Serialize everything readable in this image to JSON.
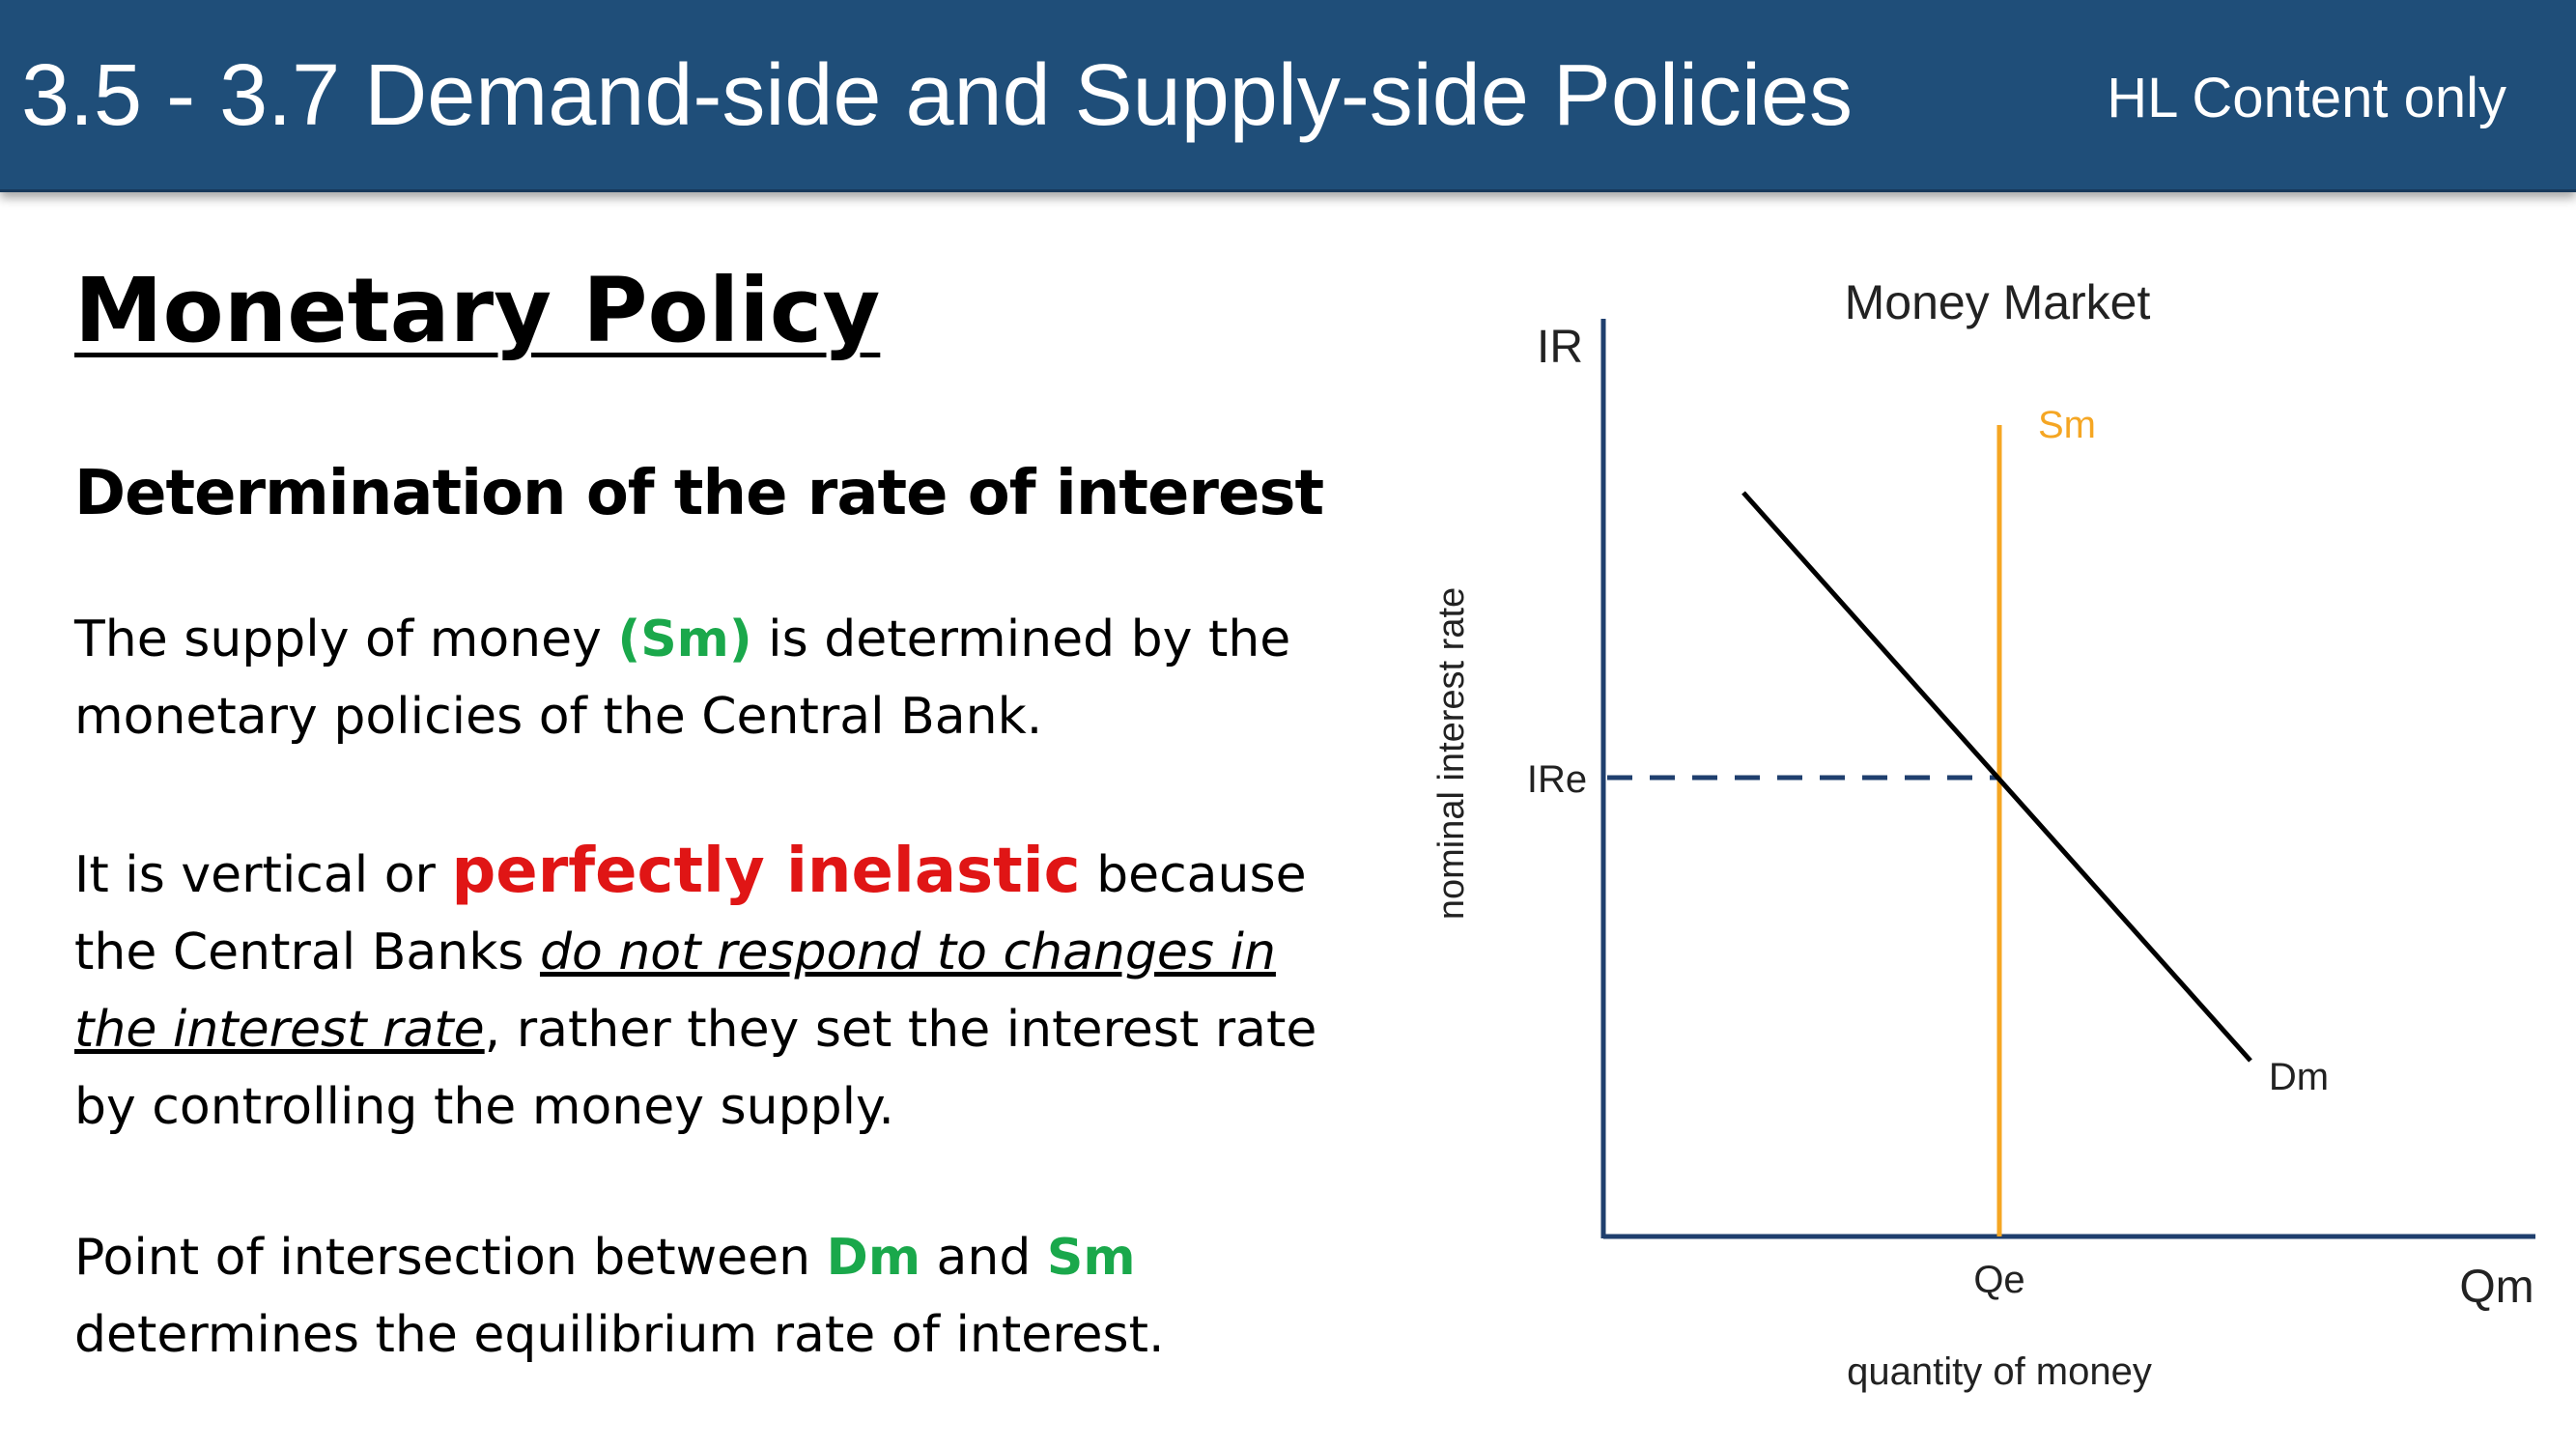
{
  "header": {
    "title": "3.5 - 3.7 Demand-side and Supply-side Policies",
    "tag": "HL Content only"
  },
  "main": {
    "heading": "Monetary Policy",
    "subheading": "Determination of the rate of interest",
    "p1": {
      "a": "The supply of money ",
      "b": "(Sm)",
      "c": " is determined by the monetary policies of the Central Bank."
    },
    "p2": {
      "a": "It is vertical or ",
      "b": "perfectly inelastic",
      "c": " because the Central Banks ",
      "d": "do not respond to changes in the interest rate",
      "e": ", rather they set the interest rate by controlling the money supply."
    },
    "p3": {
      "a": "Point of intersection between ",
      "b": "Dm",
      "c": " and ",
      "d": "Sm",
      "e": " determines the equilibrium rate of interest."
    }
  },
  "diagram": {
    "title": "Money Market",
    "y_axis_label": "IR",
    "y_axis_title": "nominal interest rate",
    "x_axis_label": "Qm",
    "x_axis_title": "quantity of money",
    "equilibrium_rate_label": "IRe",
    "equilibrium_quantity_label": "Qe",
    "supply_label": "Sm",
    "demand_label": "Dm",
    "colors": {
      "supply": "#f5a623",
      "demand": "#000000",
      "axis": "#1f3f6e",
      "dashed": "#1f3f6e"
    }
  }
}
